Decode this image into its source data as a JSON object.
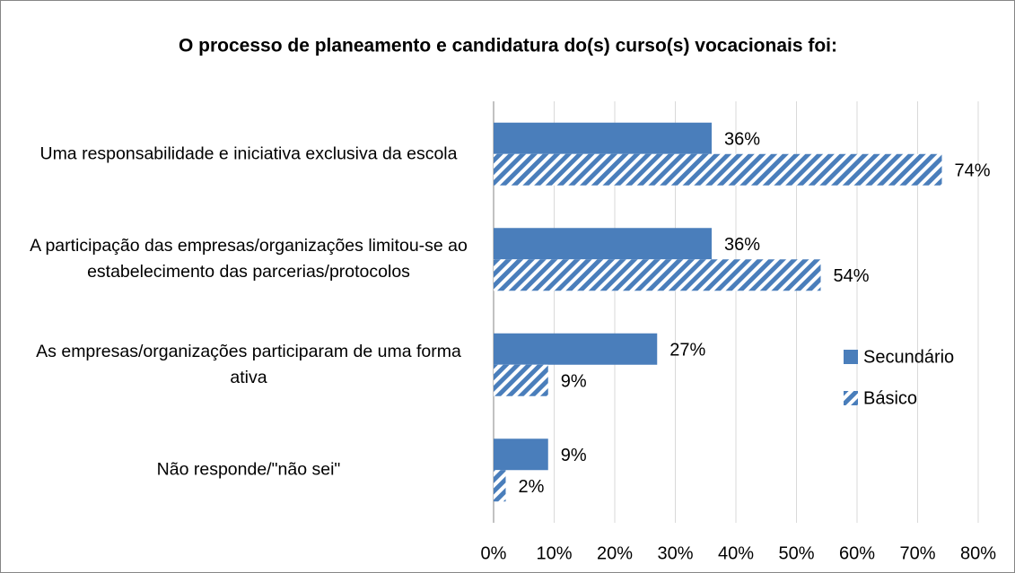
{
  "chart_data": {
    "type": "bar",
    "orientation": "horizontal",
    "title": "O processo de planeamento e candidatura do(s) curso(s) vocacionais foi:",
    "categories": [
      "Uma responsabilidade e iniciativa exclusiva da escola",
      "A participação das empresas/organizações limitou-se ao estabelecimento das parcerias/protocolos",
      "As empresas/organizações participaram de uma forma ativa",
      "Não responde/\"não sei\""
    ],
    "series": [
      {
        "name": "Secundário",
        "color": "#4a7ebb",
        "hatch": false,
        "values": [
          36,
          36,
          27,
          9
        ],
        "value_labels": [
          "36%",
          "36%",
          "27%",
          "9%"
        ]
      },
      {
        "name": "Básico",
        "color": "#4a7ebb",
        "hatch": true,
        "values": [
          74,
          54,
          9,
          2
        ],
        "value_labels": [
          "74%",
          "54%",
          "9%",
          "2%"
        ]
      }
    ],
    "xlim": [
      0,
      80
    ],
    "xticks": [
      {
        "value": 0,
        "label": "0%"
      },
      {
        "value": 10,
        "label": "10%"
      },
      {
        "value": 20,
        "label": "20%"
      },
      {
        "value": 30,
        "label": "30%"
      },
      {
        "value": 40,
        "label": "40%"
      },
      {
        "value": 50,
        "label": "50%"
      },
      {
        "value": 60,
        "label": "60%"
      },
      {
        "value": 70,
        "label": "70%"
      },
      {
        "value": 80,
        "label": "80%"
      }
    ],
    "grid": true,
    "legend": "right"
  }
}
